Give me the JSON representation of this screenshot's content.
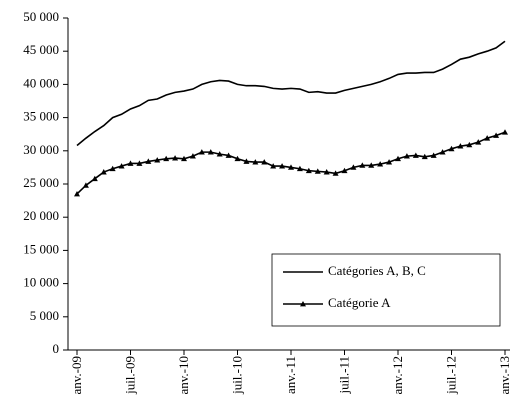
{
  "chart_data": {
    "type": "line",
    "categories": [
      "anv.-09",
      null,
      null,
      null,
      null,
      null,
      "juil.-09",
      null,
      null,
      null,
      null,
      null,
      "anv.-10",
      null,
      null,
      null,
      null,
      null,
      "juil.-10",
      null,
      null,
      null,
      null,
      null,
      "anv.-11",
      null,
      null,
      null,
      null,
      null,
      "juil.-11",
      null,
      null,
      null,
      null,
      null,
      "anv.-12",
      null,
      null,
      null,
      null,
      null,
      "juil.-12",
      null,
      null,
      null,
      null,
      null,
      "anv.-13"
    ],
    "series": [
      {
        "name": "Catégories A, B, C",
        "color": "#000000",
        "marker": "none",
        "values": [
          30800,
          31900,
          32900,
          33800,
          35000,
          35500,
          36300,
          36800,
          37600,
          37800,
          38400,
          38800,
          39000,
          39300,
          40000,
          40400,
          40600,
          40500,
          40000,
          39800,
          39800,
          39700,
          39400,
          39300,
          39400,
          39300,
          38800,
          38900,
          38700,
          38700,
          39100,
          39400,
          39700,
          40000,
          40400,
          40900,
          41500,
          41700,
          41700,
          41800,
          41800,
          42300,
          43000,
          43800,
          44100,
          44600,
          45000,
          45500,
          46500
        ]
      },
      {
        "name": "Catégorie A",
        "color": "#000000",
        "marker": "triangle",
        "values": [
          23500,
          24800,
          25800,
          26800,
          27300,
          27700,
          28100,
          28100,
          28400,
          28600,
          28800,
          28900,
          28800,
          29200,
          29800,
          29800,
          29500,
          29300,
          28800,
          28400,
          28300,
          28300,
          27700,
          27700,
          27500,
          27300,
          27000,
          26900,
          26800,
          26600,
          27000,
          27500,
          27800,
          27800,
          28000,
          28300,
          28800,
          29200,
          29300,
          29100,
          29300,
          29800,
          30300,
          30700,
          30900,
          31300,
          31900,
          32300,
          32800
        ]
      }
    ],
    "ylim": [
      0,
      50000
    ],
    "yticks": [
      0,
      {
        "value": 5000,
        "label": "5 000"
      },
      {
        "value": 10000,
        "label": "10 000"
      },
      {
        "value": 15000,
        "label": "15 000"
      },
      {
        "value": 20000,
        "label": "20 000"
      },
      {
        "value": 25000,
        "label": "25 000"
      },
      {
        "value": 30000,
        "label": "30 000"
      },
      {
        "value": 35000,
        "label": "35 000"
      },
      {
        "value": 40000,
        "label": "40 000"
      },
      {
        "value": 45000,
        "label": "45 000"
      },
      {
        "value": 50000,
        "label": "50 000"
      }
    ],
    "grid": false,
    "legend": "lower right"
  }
}
